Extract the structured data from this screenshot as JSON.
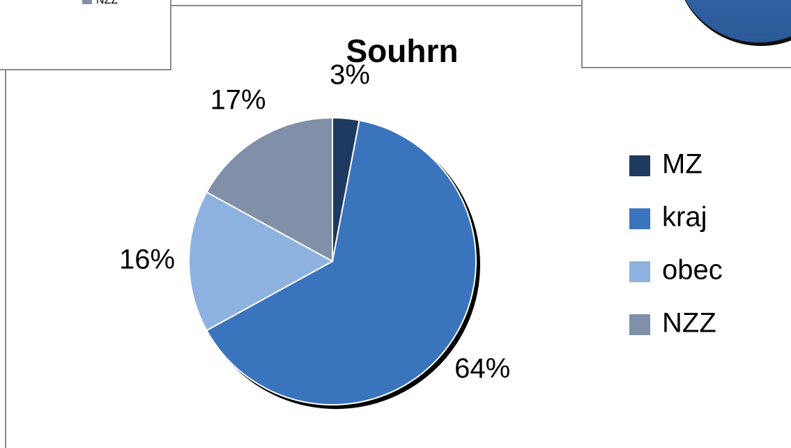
{
  "chart_data": [
    {
      "type": "pie",
      "title": "Souhrn",
      "categories": [
        "MZ",
        "kraj",
        "obec",
        "NZZ"
      ],
      "values": [
        3,
        64,
        16,
        17
      ],
      "value_labels": [
        "3%",
        "64%",
        "16%",
        "17%"
      ],
      "colors": [
        "#1f3a60",
        "#3a74bd",
        "#8eb2e0",
        "#8090a8"
      ],
      "legend": "right"
    },
    {
      "type": "pie",
      "categories": [
        "NZZ"
      ],
      "colors": [
        "#8090a8"
      ]
    }
  ]
}
